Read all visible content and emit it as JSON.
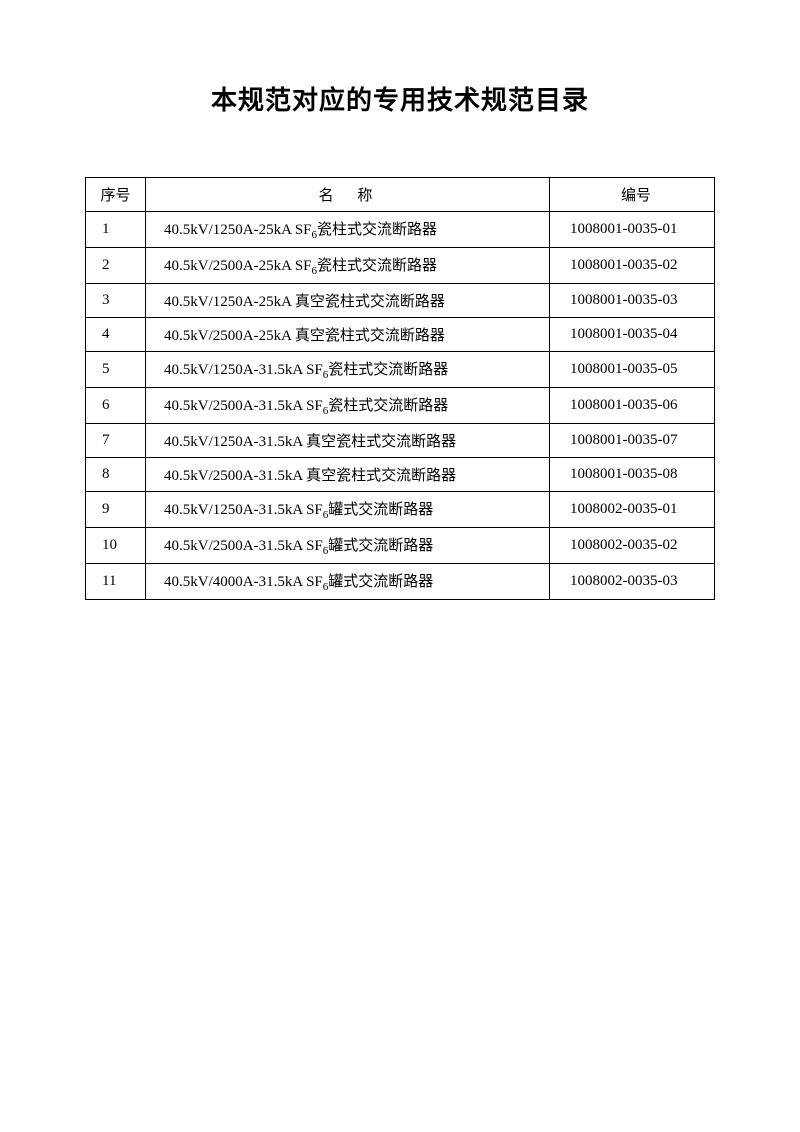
{
  "page": {
    "title": "本规范对应的专用技术规范目录",
    "background_color": "#ffffff",
    "text_color": "#000000",
    "border_color": "#000000",
    "title_fontsize": 26,
    "body_fontsize": 15
  },
  "table": {
    "columns": [
      {
        "key": "seq",
        "label": "序号",
        "width": 60,
        "align": "center"
      },
      {
        "key": "name",
        "label": "名 称",
        "align": "left"
      },
      {
        "key": "code",
        "label": "编号",
        "width": 165,
        "align": "left"
      }
    ],
    "rows": [
      {
        "seq": "1",
        "name": "40.5kV/1250A-25kA SF₆瓷柱式交流断路器",
        "code": "1008001-0035-01"
      },
      {
        "seq": "2",
        "name": "40.5kV/2500A-25kA SF₆瓷柱式交流断路器",
        "code": "1008001-0035-02"
      },
      {
        "seq": "3",
        "name": "40.5kV/1250A-25kA 真空瓷柱式交流断路器",
        "code": "1008001-0035-03"
      },
      {
        "seq": "4",
        "name": "40.5kV/2500A-25kA 真空瓷柱式交流断路器",
        "code": "1008001-0035-04"
      },
      {
        "seq": "5",
        "name": "40.5kV/1250A-31.5kA SF₆瓷柱式交流断路器",
        "code": "1008001-0035-05"
      },
      {
        "seq": "6",
        "name": "40.5kV/2500A-31.5kA SF₆瓷柱式交流断路器",
        "code": "1008001-0035-06"
      },
      {
        "seq": "7",
        "name": "40.5kV/1250A-31.5kA 真空瓷柱式交流断路器",
        "code": "1008001-0035-07"
      },
      {
        "seq": "8",
        "name": "40.5kV/2500A-31.5kA 真空瓷柱式交流断路器",
        "code": "1008001-0035-08"
      },
      {
        "seq": "9",
        "name": "40.5kV/1250A-31.5kA SF₆罐式交流断路器",
        "code": "1008002-0035-01"
      },
      {
        "seq": "10",
        "name": "40.5kV/2500A-31.5kA SF₆罐式交流断路器",
        "code": "1008002-0035-02"
      },
      {
        "seq": "11",
        "name": "40.5kV/4000A-31.5kA SF₆罐式交流断路器",
        "code": "1008002-0035-03"
      }
    ]
  }
}
